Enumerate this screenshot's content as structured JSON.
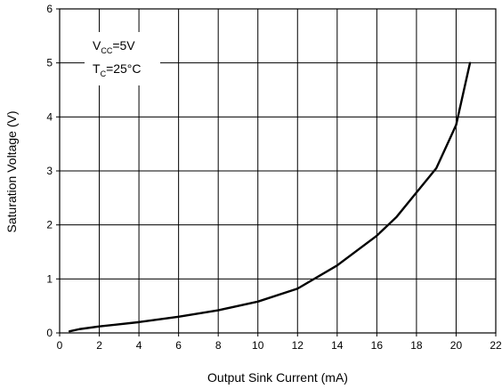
{
  "chart_data": {
    "type": "line",
    "title": "",
    "xlabel": "Output Sink Current (mA)",
    "ylabel": "Saturation Voltage (V)",
    "xlim": [
      0,
      22
    ],
    "ylim": [
      0,
      6
    ],
    "x_ticks": [
      "0",
      "2",
      "4",
      "6",
      "8",
      "10",
      "12",
      "14",
      "16",
      "18",
      "20",
      "22"
    ],
    "y_ticks": [
      "0",
      "1",
      "2",
      "3",
      "4",
      "5",
      "6"
    ],
    "grid": true,
    "legend": "none",
    "annotations": {
      "vcc_main": "V",
      "vcc_sub": "CC",
      "vcc_value": "=5V",
      "tc_main": "T",
      "tc_sub": "C",
      "tc_value": "=25°C"
    },
    "series": [
      {
        "x": [
          0.5,
          1,
          2,
          4,
          6,
          8,
          10,
          12,
          14,
          16,
          17,
          18,
          19,
          20,
          20.7
        ],
        "y": [
          0.03,
          0.07,
          0.12,
          0.2,
          0.3,
          0.42,
          0.58,
          0.82,
          1.25,
          1.8,
          2.15,
          2.6,
          3.05,
          3.85,
          5.0
        ],
        "color": "#000000"
      }
    ]
  }
}
